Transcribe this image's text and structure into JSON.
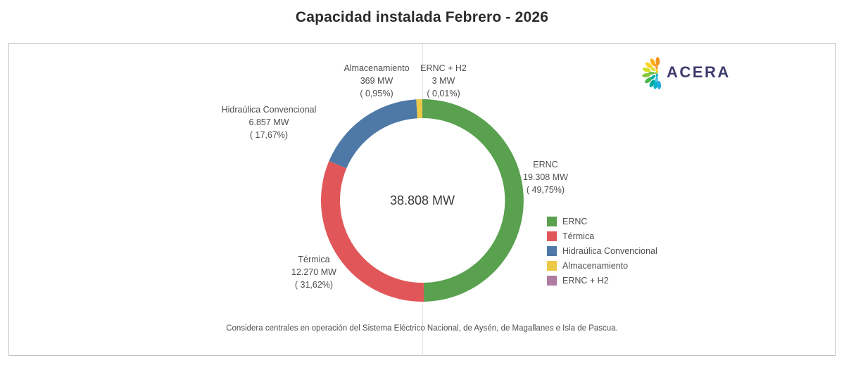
{
  "title": "Capacidad instalada Febrero - 2026",
  "footnote": "Considera centrales en operación del Sistema Eléctrico Nacional, de Aysén, de Magallanes e Isla de Pascua.",
  "logo": {
    "text": "ACERA",
    "text_color": "#3e3b6e",
    "petal_colors_outer": [
      "#f6921e",
      "#fbae17",
      "#ffd21f",
      "#d7df23",
      "#8dc63f",
      "#4cb748",
      "#00a99d",
      "#00b5c9",
      "#27aae1"
    ],
    "petal_colors_inner": [
      "#f9a13c",
      "#e3d92e",
      "#6abf4b",
      "#00ad9e",
      "#45c2e5"
    ],
    "petal_colors_core": [
      "#fbc707",
      "#8dc63f",
      "#00b0ca"
    ]
  },
  "chart_data": {
    "type": "pie",
    "subtype": "donut",
    "title": "Capacidad instalada Febrero - 2026",
    "unit": "MW",
    "total_mw": 38808,
    "center_label": "38.808 MW",
    "legend_position": "right",
    "start_angle_deg": 0,
    "direction": "clockwise",
    "slices": [
      {
        "label": "ERNC",
        "value_mw": 19308,
        "value_label": "19.308 MW",
        "pct": 49.75,
        "pct_label": "( 49,75%)",
        "color": "#59a14f"
      },
      {
        "label": "Térmica",
        "value_mw": 12270,
        "value_label": "12.270 MW",
        "pct": 31.62,
        "pct_label": "( 31,62%)",
        "color": "#e15759"
      },
      {
        "label": "Hidraúlica Convencional",
        "value_mw": 6857,
        "value_label": "6.857 MW",
        "pct": 17.67,
        "pct_label": "( 17,67%)",
        "color": "#4e79a7"
      },
      {
        "label": "Almacenamiento",
        "value_mw": 369,
        "value_label": "369 MW",
        "pct": 0.95,
        "pct_label": "( 0,95%)",
        "color": "#edc948"
      },
      {
        "label": "ERNC + H2",
        "value_mw": 3,
        "value_label": "3 MW",
        "pct": 0.01,
        "pct_label": "( 0,01%)",
        "color": "#b07aa1"
      }
    ]
  }
}
